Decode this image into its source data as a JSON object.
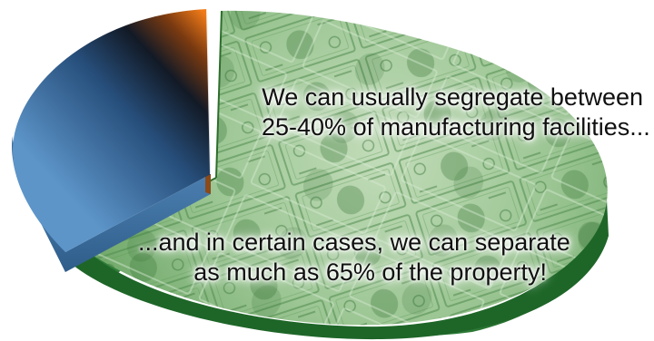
{
  "captions": {
    "top_line1": "We can usually segregate between",
    "top_line2": "25-40% of manufacturing facilities...",
    "bottom_line1": "...and in certain cases, we can separate",
    "bottom_line2": "as much as 65% of the property!"
  },
  "pie": {
    "money_slice_pattern": "dollar-bills",
    "colors": {
      "money_slice": "#7fb377",
      "money_edge": "#1f6b2a",
      "blue_slice": "#2f6fa8",
      "blue_edge": "#3c6f9e",
      "orange_accent": "#e86a10"
    }
  }
}
